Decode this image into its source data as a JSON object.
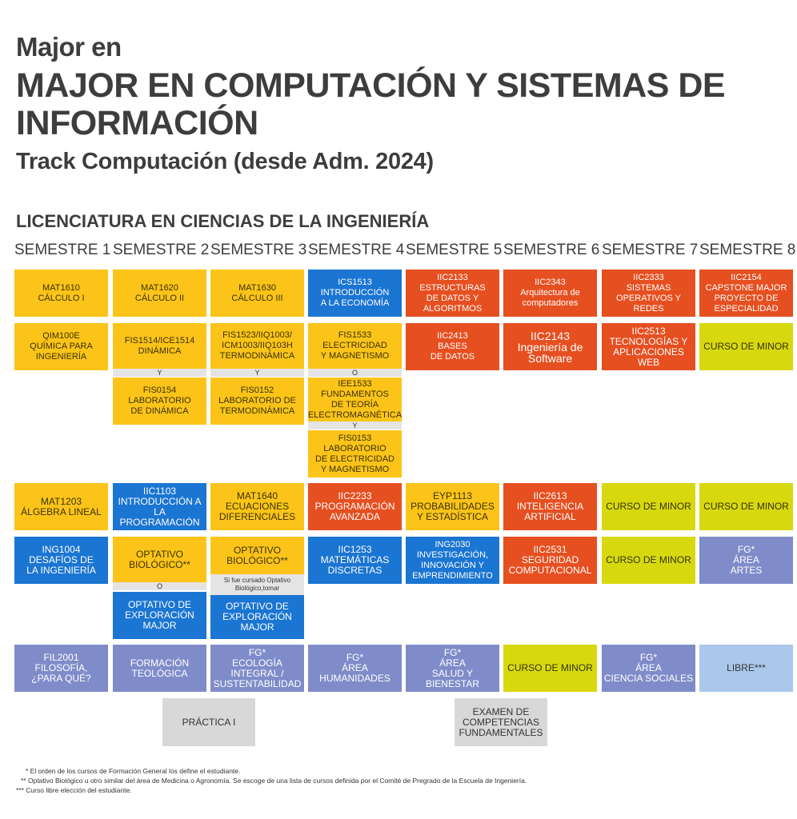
{
  "header": {
    "line1": "Major en",
    "title": "MAJOR EN COMPUTACIÓN Y SISTEMAS DE INFORMACIÓN",
    "track": "Track Computación (desde Adm. 2024)"
  },
  "section_title": "LICENCIATURA EN CIENCIAS DE LA INGENIERÍA",
  "semesters": [
    "SEMESTRE 1",
    "SEMESTRE 2",
    "SEMESTRE 3",
    "SEMESTRE 4",
    "SEMESTRE 5",
    "SEMESTRE 6",
    "SEMESTRE 7",
    "SEMESTRE 8"
  ],
  "courses": {
    "mat1610": "MAT1610\nCÁLCULO I",
    "mat1620": "MAT1620\nCÁLCULO II",
    "mat1630": "MAT1630\nCÁLCULO III",
    "ics1513": "ICS1513\nINTRODUCCIÓN\nA LA ECONOMÍA",
    "iic2133": "IIC2133\nESTRUCTURAS\nDE DATOS Y\nALGORITMOS",
    "iic2343": "IIC2343\nArquitectura de\ncomputadores",
    "iic2333": "IIC2333\nSISTEMAS\nOPERATIVOS Y REDES",
    "iic2154": "IIC2154\nCAPSTONE MAJOR\nPROYECTO DE\nESPECIALIDAD",
    "qim100e": "QIM100E\nQUÍMICA PARA\nINGENIERÍA",
    "fis1514": "FIS1514/ICE1514\nDINÁMICA",
    "fis1523": "FIS1523/IIQ1003/\nICM1003/IIQ103H\nTERMODINÁMICA",
    "fis1533": "FIS1533\nELECTRICIDAD\nY MAGNETISMO",
    "iic2413": "IIC2413\nBASES\nDE DATOS",
    "iic2143": "IIC2143\nIngeniería de\nSoftware",
    "iic2513": "IIC2513\nTECNOLOGÍAS Y\nAPLICACIONES WEB",
    "minor_s8_r2": "CURSO DE MINOR",
    "fis0154": "FIS0154\nLABORATORIO\nDE DINÁMICA",
    "fis0152": "FIS0152\nLABORATORIO DE\nTERMODINÁMICA",
    "iee1533": "IEE1533\nFUNDAMENTOS\nDE TEORÍA\nELECTROMAGNÉTICA",
    "fis0153": "FIS0153\nLABORATORIO\nDE ELECTRICIDAD\nY MAGNETISMO",
    "mat1203": "MAT1203\nÁLGEBRA LINEAL",
    "iic1103": "IIC1103\nINTRODUCCIÓN A\nLA PROGRAMACIÓN",
    "mat1640": "MAT1640\nECUACIONES\nDIFERENCIALES",
    "iic2233": "IIC2233\nPROGRAMACIÓN\nAVANZADA",
    "eyp1113": "EYP1113\nPROBABILIDADES\nY ESTADÍSTICA",
    "iic2613": "IIC2613\nINTELIGENCIA\nARTIFICIAL",
    "minor_s7_r4": "CURSO DE MINOR",
    "minor_s8_r4": "CURSO DE MINOR",
    "ing1004": "ING1004\nDESAFÍOS DE\nLA INGENIERÍA",
    "opt_bio_s2": "OPTATIVO\nBIOLÓGICO**",
    "opt_bio_s3": "OPTATIVO\nBIOLÓGICO**",
    "iic1253": "IIC1253\nMATEMÁTICAS\nDISCRETAS",
    "ing2030": "ING2030\nINVESTIGACIÓN,\nINNOVACIÓN Y\nEMPRENDIMIENTO",
    "iic2531": "IIC2531\nSEGURIDAD\nCOMPUTACIONAL",
    "minor_s7_r5": "CURSO DE MINOR",
    "fg_artes": "FG*\nÁREA\nARTES",
    "opt_expl_s2": "OPTATIVO DE\nEXPLORACIÓN\nMAJOR",
    "opt_expl_s3": "OPTATIVO DE\nEXPLORACIÓN\nMAJOR",
    "fil2001": "FIL2001\nFILOSOFÍA,\n¿PARA QUÉ?",
    "form_teologica": "FORMACIÓN\nTEOLÓGICA",
    "fg_ecologia": "FG*\nECOLOGÍA INTEGRAL /\nSUSTENTABILIDAD",
    "fg_humanidades": "FG*\nÁREA\nHUMANIDADES",
    "fg_salud": "FG*\nÁREA\nSALUD Y BIENESTAR",
    "minor_s6_r7": "CURSO DE MINOR",
    "fg_sociales": "FG*\nÁREA\nCIENCIA SOCIALES",
    "libre": "LIBRE***",
    "practica": "PRÁCTICA I",
    "examen": "EXAMEN DE\nCOMPETENCIAS\nFUNDAMENTALES"
  },
  "connectors": {
    "y": "Y",
    "o": "O"
  },
  "note_s3": "Si fue cursado Optativo\nBiológico,tomar",
  "footnotes": [
    "* El orden de los cursos de Formación General los define el estudiante.",
    "** Optativo Biológico u otro similar del área de Medicina o Agronomía. Se escoge de una lista de cursos definida por el Comité de Pregrado de la Escuela de Ingeniería.",
    "*** Curso libre elección del estudiante."
  ],
  "colors": {
    "ciencias_basicas": "#fcc419",
    "ingenieria": "#1b75d2",
    "major": "#e64f20",
    "minor": "#d8d80f",
    "formacion_general": "#7f8cc9",
    "libre": "#aac8ec",
    "requisito": "#d9d8d8"
  }
}
